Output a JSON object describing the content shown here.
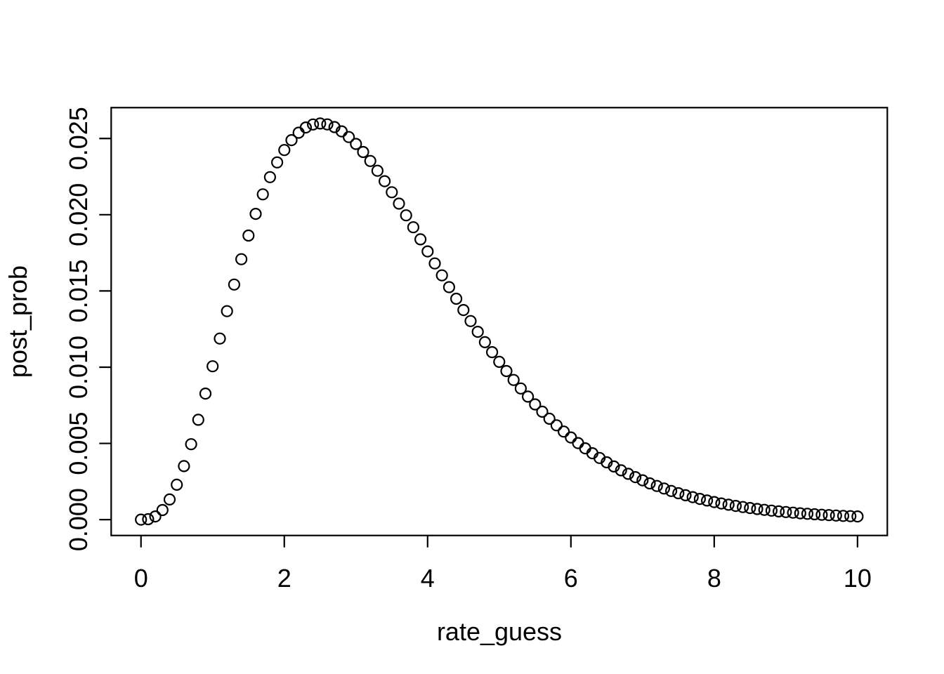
{
  "figure": {
    "background_color": "#ffffff",
    "foreground_color": "#000000",
    "marker_style": "open-circle"
  },
  "chart_data": {
    "type": "scatter",
    "title": "",
    "xlabel": "rate_guess",
    "ylabel": "post_prob",
    "legend": null,
    "grid": false,
    "xlim": [
      -0.416,
      10.416
    ],
    "ylim": [
      -0.0010393,
      0.0270222
    ],
    "x_axis_ticks": [
      {
        "value": 0,
        "label": "0"
      },
      {
        "value": 2,
        "label": "2"
      },
      {
        "value": 4,
        "label": "4"
      },
      {
        "value": 6,
        "label": "6"
      },
      {
        "value": 8,
        "label": "8"
      },
      {
        "value": 10,
        "label": "10"
      }
    ],
    "y_axis_ticks": [
      {
        "value": 0.0,
        "label": "0.000"
      },
      {
        "value": 0.005,
        "label": "0.005"
      },
      {
        "value": 0.01,
        "label": "0.010"
      },
      {
        "value": 0.015,
        "label": "0.015"
      },
      {
        "value": 0.02,
        "label": "0.020"
      },
      {
        "value": 0.025,
        "label": "0.025"
      }
    ],
    "x": [
      0,
      0.1,
      0.2,
      0.3,
      0.4,
      0.5,
      0.6,
      0.7,
      0.8,
      0.9,
      1.0,
      1.1,
      1.2,
      1.3,
      1.4,
      1.5,
      1.6,
      1.7,
      1.8,
      1.9,
      2.0,
      2.1,
      2.2,
      2.3,
      2.4,
      2.5,
      2.6,
      2.7,
      2.8,
      2.9,
      3.0,
      3.1,
      3.2,
      3.3,
      3.4,
      3.5,
      3.6,
      3.7,
      3.8,
      3.9,
      4.0,
      4.1,
      4.2,
      4.3,
      4.4,
      4.5,
      4.6,
      4.7,
      4.8,
      4.9,
      5.0,
      5.1,
      5.2,
      5.3,
      5.4,
      5.5,
      5.6,
      5.7,
      5.8,
      5.9,
      6.0,
      6.1,
      6.2,
      6.3,
      6.4,
      6.5,
      6.6,
      6.7,
      6.8,
      6.9,
      7.0,
      7.1,
      7.2,
      7.3,
      7.4,
      7.5,
      7.6,
      7.7,
      7.8,
      7.9,
      8.0,
      8.1,
      8.2,
      8.3,
      8.4,
      8.5,
      8.6,
      8.7,
      8.8,
      8.9,
      9.0,
      9.1,
      9.2,
      9.3,
      9.4,
      9.5,
      9.6,
      9.7,
      9.8,
      9.9,
      10.0
    ],
    "y": [
      0,
      3e-05,
      0.00021,
      0.000629,
      0.001323,
      0.002291,
      0.003512,
      0.004946,
      0.006548,
      0.008269,
      0.01006,
      0.011876,
      0.013674,
      0.01542,
      0.017081,
      0.018633,
      0.020057,
      0.021337,
      0.022464,
      0.023432,
      0.02424,
      0.024888,
      0.025379,
      0.025721,
      0.025919,
      0.025983,
      0.025922,
      0.025747,
      0.025468,
      0.025095,
      0.024641,
      0.024113,
      0.023524,
      0.022882,
      0.022195,
      0.021475,
      0.020726,
      0.019957,
      0.019174,
      0.018384,
      0.017592,
      0.016802,
      0.01602,
      0.015248,
      0.014488,
      0.013748,
      0.013024,
      0.012321,
      0.011639,
      0.010983,
      0.01035,
      0.009743,
      0.009158,
      0.008602,
      0.008068,
      0.007557,
      0.00708,
      0.006618,
      0.006184,
      0.005776,
      0.005389,
      0.005019,
      0.004673,
      0.004351,
      0.004045,
      0.003761,
      0.003486,
      0.003235,
      0.003004,
      0.002787,
      0.002578,
      0.002379,
      0.002207,
      0.00204,
      0.001881,
      0.001733,
      0.001598,
      0.001474,
      0.001359,
      0.001253,
      0.001154,
      0.001062,
      0.000977,
      0.000899,
      0.000827,
      0.00076,
      0.000698,
      0.000641,
      0.000589,
      0.000541,
      0.000497,
      0.000456,
      0.000418,
      0.000383,
      0.000351,
      0.000321,
      0.000294,
      0.000269,
      0.000247,
      0.000226,
      0.000207
    ]
  }
}
